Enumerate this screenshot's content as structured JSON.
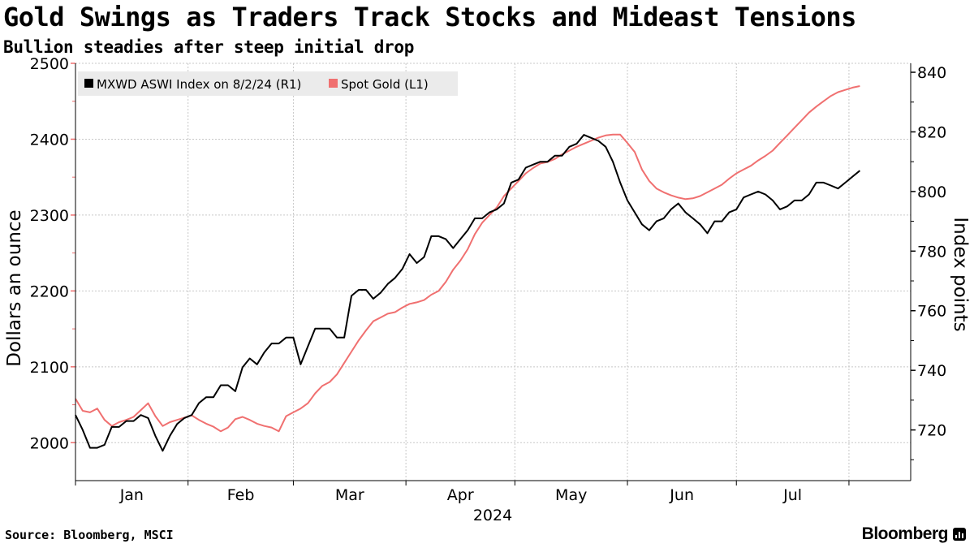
{
  "title": "Gold Swings as Traders Track Stocks and Mideast Tensions",
  "subtitle": "Bullion steadies after steep initial drop",
  "footer": {
    "source": "Source: Bloomberg, MSCI",
    "brand": "Bloomberg"
  },
  "chart_data": {
    "type": "line",
    "title": "Gold Swings as Traders Track Stocks and Mideast Tensions",
    "subtitle": "Bullion steadies after steep initial drop",
    "left_axis": {
      "label": "Dollars an ounce",
      "min": 1950,
      "max": 2500,
      "ticks": [
        "2000",
        "2100",
        "2200",
        "2300",
        "2400",
        "2500"
      ],
      "tick_values": [
        2000,
        2100,
        2200,
        2300,
        2400,
        2500
      ]
    },
    "right_axis": {
      "label": "Index points",
      "min": 703,
      "max": 843,
      "ticks": [
        "720",
        "740",
        "760",
        "780",
        "800",
        "820",
        "840"
      ],
      "tick_values": [
        720,
        740,
        760,
        780,
        800,
        820,
        840
      ]
    },
    "x_axis": {
      "months": [
        "Jan",
        "Feb",
        "Mar",
        "Apr",
        "May",
        "Jun",
        "Jul"
      ],
      "year": "2024",
      "start_day": 0,
      "end_day": 230,
      "month_start_days": [
        0,
        31,
        60,
        91,
        121,
        152,
        182,
        213
      ]
    },
    "legend": {
      "placement": "top-left",
      "entries": [
        {
          "name": "MXWD ASWI Index on 8/2/24 (R1)",
          "color": "#000000"
        },
        {
          "name": "Spot Gold (L1)",
          "color": "#f07070"
        }
      ]
    },
    "series": [
      {
        "name": "MXWD ASWI Index on 8/2/24 (R1)",
        "axis": "right",
        "color": "#000000",
        "x": [
          0,
          2,
          4,
          6,
          8,
          10,
          12,
          14,
          16,
          18,
          20,
          22,
          24,
          26,
          28,
          30,
          32,
          34,
          36,
          38,
          40,
          42,
          44,
          46,
          48,
          50,
          52,
          54,
          56,
          58,
          60,
          62,
          64,
          66,
          68,
          70,
          72,
          74,
          76,
          78,
          80,
          82,
          84,
          86,
          88,
          90,
          92,
          94,
          96,
          98,
          100,
          102,
          104,
          106,
          108,
          110,
          112,
          114,
          116,
          118,
          120,
          122,
          124,
          126,
          128,
          130,
          132,
          134,
          136,
          138,
          140,
          142,
          144,
          146,
          148,
          150,
          152,
          154,
          156,
          158,
          160,
          162,
          164,
          166,
          168,
          170,
          172,
          174,
          176,
          178,
          180,
          182,
          184,
          186,
          188,
          190,
          192,
          194,
          196,
          198,
          200,
          202,
          204,
          206,
          208,
          210,
          212,
          214,
          216
        ],
        "values": [
          725,
          720,
          714,
          714,
          715,
          721,
          721,
          723,
          723,
          725,
          724,
          718,
          713,
          718,
          722,
          724,
          725,
          729,
          731,
          731,
          735,
          735,
          733,
          741,
          744,
          742,
          746,
          749,
          749,
          751,
          751,
          742,
          748,
          754,
          754,
          754,
          751,
          751,
          765,
          767,
          767,
          764,
          766,
          769,
          771,
          774,
          779,
          776,
          778,
          785,
          785,
          784,
          781,
          784,
          787,
          791,
          791,
          793,
          794,
          796,
          803,
          804,
          808,
          809,
          810,
          810,
          812,
          812,
          815,
          816,
          819,
          818,
          817,
          815,
          810,
          803,
          797,
          793,
          789,
          787,
          790,
          791,
          794,
          796,
          793,
          791,
          789,
          786,
          790,
          790,
          793,
          794,
          798,
          799,
          800,
          799,
          797,
          794,
          795,
          797,
          797,
          799,
          803,
          803,
          802,
          801,
          803,
          805,
          807
        ]
      },
      {
        "name": "Spot Gold (L1)",
        "axis": "left",
        "color": "#f07070",
        "x": [
          0,
          2,
          4,
          6,
          8,
          10,
          12,
          14,
          16,
          18,
          20,
          22,
          24,
          26,
          28,
          30,
          32,
          34,
          36,
          38,
          40,
          42,
          44,
          46,
          48,
          50,
          52,
          54,
          56,
          58,
          60,
          62,
          64,
          66,
          68,
          70,
          72,
          74,
          76,
          78,
          80,
          82,
          84,
          86,
          88,
          90,
          92,
          94,
          96,
          98,
          100,
          102,
          104,
          106,
          108,
          110,
          112,
          114,
          116,
          118,
          120,
          122,
          124,
          126,
          128,
          130,
          132,
          134,
          136,
          138,
          140,
          142,
          144,
          146,
          148,
          150,
          152,
          154,
          156,
          158,
          160,
          162,
          164,
          166,
          168,
          170,
          172,
          174,
          176,
          178,
          180,
          182,
          184,
          186,
          188,
          190,
          192,
          194,
          196,
          198,
          200,
          202,
          204,
          206,
          208,
          210,
          212,
          214,
          216
        ],
        "values": [
          2058,
          2042,
          2040,
          2045,
          2030,
          2022,
          2027,
          2030,
          2034,
          2043,
          2052,
          2035,
          2022,
          2027,
          2030,
          2033,
          2036,
          2030,
          2025,
          2021,
          2015,
          2020,
          2031,
          2034,
          2030,
          2025,
          2022,
          2020,
          2015,
          2035,
          2040,
          2045,
          2052,
          2065,
          2075,
          2080,
          2090,
          2105,
          2120,
          2135,
          2148,
          2160,
          2165,
          2170,
          2172,
          2178,
          2183,
          2185,
          2188,
          2195,
          2200,
          2212,
          2228,
          2240,
          2255,
          2275,
          2290,
          2300,
          2310,
          2325,
          2335,
          2345,
          2355,
          2362,
          2368,
          2370,
          2374,
          2380,
          2385,
          2390,
          2394,
          2398,
          2402,
          2405,
          2406,
          2406,
          2395,
          2383,
          2360,
          2345,
          2335,
          2330,
          2326,
          2323,
          2321,
          2322,
          2325,
          2330,
          2335,
          2340,
          2348,
          2355,
          2360,
          2365,
          2372,
          2378,
          2385,
          2395,
          2405,
          2415,
          2425,
          2435,
          2443,
          2450,
          2457,
          2462,
          2465,
          2468,
          2470
        ]
      }
    ]
  }
}
